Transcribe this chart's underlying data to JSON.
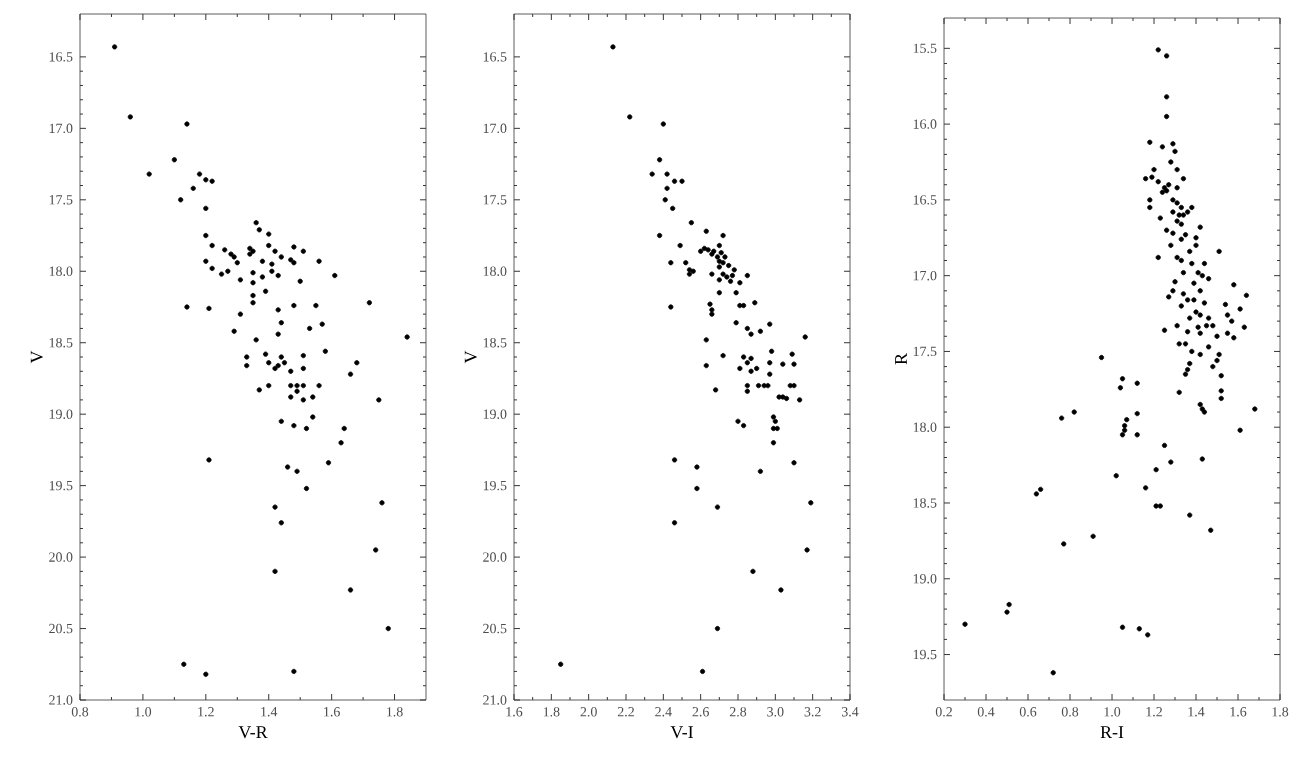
{
  "chart_data": [
    {
      "type": "scatter",
      "xlabel": "V-R",
      "ylabel": "V",
      "color": "#000000",
      "xlim": [
        0.8,
        1.9
      ],
      "xticks": [
        0.8,
        {
          "value": 1.0,
          "label": "1.0"
        },
        1.2,
        1.4,
        1.6,
        1.8
      ],
      "ylim": [
        21.0,
        16.2
      ],
      "yticks": [
        16.5,
        {
          "value": 17.0,
          "label": "17.0"
        },
        17.5,
        {
          "value": 18.0,
          "label": "18.0"
        },
        18.5,
        {
          "value": 19.0,
          "label": "19.0"
        },
        19.5,
        {
          "value": 20.0,
          "label": "20.0"
        },
        20.5,
        {
          "value": 21.0,
          "label": "21.0"
        }
      ],
      "x": [
        0.91,
        0.96,
        1.14,
        1.1,
        1.02,
        1.18,
        1.2,
        1.22,
        1.16,
        1.12,
        1.2,
        1.36,
        1.37,
        1.4,
        1.2,
        1.22,
        1.48,
        1.34,
        1.26,
        1.35,
        1.42,
        1.51,
        1.28,
        1.34,
        1.4,
        1.44,
        1.29,
        1.47,
        1.38,
        1.56,
        1.2,
        1.3,
        1.41,
        1.48,
        1.22,
        1.27,
        1.41,
        1.35,
        1.43,
        1.25,
        1.61,
        1.38,
        1.31,
        1.5,
        1.35,
        1.39,
        1.35,
        1.35,
        1.72,
        1.48,
        1.55,
        1.14,
        1.21,
        1.43,
        1.31,
        1.57,
        1.44,
        1.53,
        1.29,
        1.43,
        1.84,
        1.36,
        1.58,
        1.39,
        1.51,
        1.33,
        1.44,
        1.45,
        1.4,
        1.68,
        1.33,
        1.42,
        1.51,
        1.43,
        1.47,
        1.66,
        1.4,
        1.47,
        1.49,
        1.51,
        1.56,
        1.37,
        1.49,
        1.47,
        1.54,
        1.51,
        1.75,
        1.54,
        1.44,
        1.48,
        1.52,
        1.64,
        1.63,
        1.21,
        1.59,
        1.46,
        1.49,
        1.52,
        1.76,
        1.42,
        1.44,
        1.74,
        1.42,
        1.66,
        1.78,
        1.13,
        1.48,
        1.2
      ],
      "values": [
        16.43,
        16.92,
        16.97,
        17.22,
        17.32,
        17.32,
        17.36,
        17.37,
        17.42,
        17.5,
        17.56,
        17.66,
        17.71,
        17.74,
        17.75,
        17.82,
        17.83,
        17.84,
        17.85,
        17.86,
        17.86,
        17.86,
        17.88,
        17.88,
        17.82,
        17.9,
        17.9,
        17.92,
        17.93,
        17.93,
        17.93,
        17.94,
        17.95,
        17.94,
        17.98,
        18.0,
        18.0,
        18.01,
        18.03,
        18.02,
        18.03,
        18.04,
        18.06,
        18.07,
        18.08,
        18.14,
        18.17,
        18.22,
        18.22,
        18.24,
        18.24,
        18.25,
        18.26,
        18.27,
        18.3,
        18.37,
        18.36,
        18.4,
        18.42,
        18.44,
        18.46,
        18.48,
        18.56,
        18.58,
        18.59,
        18.6,
        18.6,
        18.64,
        18.64,
        18.64,
        18.66,
        18.68,
        18.68,
        18.66,
        18.7,
        18.72,
        18.8,
        18.8,
        18.8,
        18.8,
        18.8,
        18.83,
        18.84,
        18.88,
        18.88,
        18.9,
        18.9,
        19.02,
        19.05,
        19.08,
        19.1,
        19.1,
        19.2,
        19.32,
        19.34,
        19.37,
        19.4,
        19.52,
        19.62,
        19.65,
        19.76,
        19.95,
        20.1,
        20.23,
        20.5,
        20.75,
        20.8,
        20.82
      ]
    },
    {
      "type": "scatter",
      "xlabel": "V-I",
      "ylabel": "V",
      "color": "#000000",
      "xlim": [
        1.6,
        3.4
      ],
      "xticks": [
        1.6,
        1.8,
        {
          "value": 2.0,
          "label": "2.0"
        },
        2.2,
        2.4,
        2.6,
        2.8,
        {
          "value": 3.0,
          "label": "3.0"
        },
        3.2,
        3.4
      ],
      "ylim": [
        21.0,
        16.2
      ],
      "yticks": [
        16.5,
        {
          "value": 17.0,
          "label": "17.0"
        },
        17.5,
        {
          "value": 18.0,
          "label": "18.0"
        },
        18.5,
        {
          "value": 19.0,
          "label": "19.0"
        },
        19.5,
        {
          "value": 20.0,
          "label": "20.0"
        },
        20.5,
        {
          "value": 21.0,
          "label": "21.0"
        }
      ],
      "x": [
        2.13,
        2.22,
        2.4,
        2.38,
        2.34,
        2.42,
        2.46,
        2.5,
        2.42,
        2.41,
        2.45,
        2.55,
        2.63,
        2.38,
        2.72,
        2.49,
        2.7,
        2.62,
        2.6,
        2.64,
        2.67,
        2.71,
        2.66,
        2.69,
        2.73,
        2.7,
        2.52,
        2.44,
        2.72,
        2.75,
        2.7,
        2.54,
        2.78,
        2.56,
        2.66,
        2.54,
        2.72,
        2.77,
        2.85,
        2.74,
        2.7,
        2.76,
        2.81,
        2.7,
        2.79,
        2.89,
        2.65,
        2.81,
        2.83,
        2.44,
        2.66,
        2.66,
        2.79,
        2.97,
        2.85,
        2.92,
        2.87,
        3.16,
        2.63,
        2.98,
        2.72,
        2.83,
        3.09,
        2.87,
        2.85,
        2.97,
        3.04,
        3.1,
        2.63,
        2.81,
        2.9,
        2.87,
        2.97,
        2.68,
        2.85,
        2.91,
        2.94,
        2.96,
        3.08,
        3.1,
        2.85,
        3.02,
        3.04,
        3.06,
        3.13,
        2.99,
        3.0,
        2.8,
        2.83,
        2.99,
        3.01,
        2.99,
        2.46,
        3.1,
        2.58,
        2.92,
        2.58,
        3.19,
        2.69,
        2.46,
        3.17,
        2.88,
        3.03,
        2.69,
        1.85,
        2.61
      ],
      "values": [
        16.43,
        16.92,
        16.97,
        17.22,
        17.32,
        17.32,
        17.37,
        17.37,
        17.42,
        17.5,
        17.56,
        17.66,
        17.72,
        17.75,
        17.75,
        17.82,
        17.82,
        17.84,
        17.86,
        17.85,
        17.86,
        17.87,
        17.88,
        17.9,
        17.9,
        17.93,
        17.94,
        17.94,
        17.94,
        17.96,
        17.97,
        17.99,
        17.99,
        18.0,
        18.02,
        18.02,
        18.02,
        18.03,
        18.03,
        18.04,
        18.06,
        18.07,
        18.08,
        18.15,
        18.15,
        18.22,
        18.23,
        18.24,
        18.24,
        18.25,
        18.27,
        18.3,
        18.36,
        18.37,
        18.4,
        18.42,
        18.44,
        18.46,
        18.48,
        18.56,
        18.59,
        18.6,
        18.58,
        18.61,
        18.64,
        18.64,
        18.65,
        18.65,
        18.66,
        18.68,
        18.68,
        18.7,
        18.72,
        18.83,
        18.8,
        18.8,
        18.8,
        18.8,
        18.8,
        18.8,
        18.84,
        18.88,
        18.88,
        18.89,
        18.9,
        19.02,
        19.05,
        19.05,
        19.08,
        19.1,
        19.1,
        19.2,
        19.32,
        19.34,
        19.37,
        19.4,
        19.52,
        19.62,
        19.65,
        19.76,
        19.95,
        20.1,
        20.23,
        20.5,
        20.75,
        20.8
      ]
    },
    {
      "type": "scatter",
      "xlabel": "R-I",
      "ylabel": "R",
      "color": "#000000",
      "xlim": [
        0.2,
        1.8
      ],
      "xticks": [
        0.2,
        0.4,
        0.6,
        0.8,
        {
          "value": 1.0,
          "label": "1.0"
        },
        1.2,
        1.4,
        1.6,
        1.8
      ],
      "ylim": [
        19.8,
        15.3
      ],
      "yticks": [
        15.5,
        {
          "value": 16.0,
          "label": "16.0"
        },
        16.5,
        {
          "value": 17.0,
          "label": "17.0"
        },
        17.5,
        {
          "value": 18.0,
          "label": "18.0"
        },
        18.5,
        {
          "value": 19.0,
          "label": "19.0"
        },
        19.5
      ],
      "x": [
        1.22,
        1.26,
        1.26,
        1.26,
        1.18,
        1.24,
        1.29,
        1.3,
        1.2,
        1.28,
        1.31,
        1.16,
        1.19,
        1.22,
        1.25,
        1.26,
        1.24,
        1.27,
        1.31,
        1.34,
        1.18,
        1.18,
        1.29,
        1.31,
        1.33,
        1.38,
        1.29,
        1.32,
        1.34,
        1.36,
        1.23,
        1.31,
        1.33,
        1.26,
        1.42,
        1.29,
        1.35,
        1.4,
        1.33,
        1.28,
        1.4,
        1.37,
        1.51,
        1.22,
        1.31,
        1.33,
        1.38,
        1.44,
        1.34,
        1.41,
        1.43,
        1.46,
        1.3,
        1.39,
        1.58,
        1.29,
        1.34,
        1.42,
        1.27,
        1.64,
        1.36,
        1.39,
        1.33,
        1.44,
        1.54,
        1.4,
        1.42,
        1.61,
        1.37,
        1.46,
        1.55,
        1.57,
        1.31,
        1.41,
        1.45,
        1.48,
        1.63,
        1.25,
        1.36,
        1.42,
        1.55,
        1.5,
        1.58,
        1.32,
        1.35,
        1.46,
        1.38,
        1.42,
        1.51,
        1.5,
        1.37,
        1.48,
        1.36,
        1.35,
        1.52,
        0.95,
        1.05,
        1.04,
        1.12,
        1.32,
        1.52,
        1.52,
        1.42,
        1.43,
        1.44,
        1.68,
        0.76,
        0.82,
        1.12,
        1.07,
        1.06,
        1.06,
        1.05,
        1.12,
        1.61,
        1.25,
        1.43,
        1.28,
        1.21,
        1.02,
        1.16,
        0.66,
        0.64,
        1.21,
        1.23,
        1.37,
        1.47,
        0.91,
        0.77,
        0.51,
        0.5,
        0.3,
        1.05,
        1.13,
        1.17,
        0.72
      ],
      "values": [
        15.51,
        15.55,
        15.82,
        15.95,
        16.12,
        16.15,
        16.13,
        16.18,
        16.3,
        16.25,
        16.3,
        16.36,
        16.35,
        16.38,
        16.42,
        16.44,
        16.45,
        16.4,
        16.42,
        16.36,
        16.5,
        16.55,
        16.5,
        16.52,
        16.55,
        16.55,
        16.58,
        16.6,
        16.6,
        16.58,
        16.62,
        16.64,
        16.66,
        16.7,
        16.68,
        16.72,
        16.73,
        16.75,
        16.76,
        16.8,
        16.8,
        16.84,
        16.84,
        16.88,
        16.88,
        16.9,
        16.92,
        16.92,
        16.98,
        16.98,
        17.0,
        17.02,
        17.04,
        17.05,
        17.06,
        17.1,
        17.12,
        17.1,
        17.14,
        17.13,
        17.16,
        17.16,
        17.2,
        17.18,
        17.19,
        17.24,
        17.26,
        17.22,
        17.28,
        17.28,
        17.26,
        17.3,
        17.33,
        17.34,
        17.33,
        17.33,
        17.34,
        17.36,
        17.37,
        17.38,
        17.38,
        17.4,
        17.41,
        17.45,
        17.45,
        17.47,
        17.5,
        17.52,
        17.52,
        17.56,
        17.58,
        17.6,
        17.62,
        17.65,
        17.66,
        17.54,
        17.68,
        17.74,
        17.71,
        17.77,
        17.76,
        17.81,
        17.85,
        17.88,
        17.9,
        17.88,
        17.94,
        17.9,
        17.91,
        17.95,
        17.99,
        18.02,
        18.05,
        18.05,
        18.02,
        18.12,
        18.21,
        18.23,
        18.28,
        18.32,
        18.4,
        18.41,
        18.44,
        18.52,
        18.52,
        18.58,
        18.68,
        18.72,
        18.77,
        19.17,
        19.22,
        19.3,
        19.32,
        19.33,
        19.37,
        19.62
      ]
    }
  ]
}
